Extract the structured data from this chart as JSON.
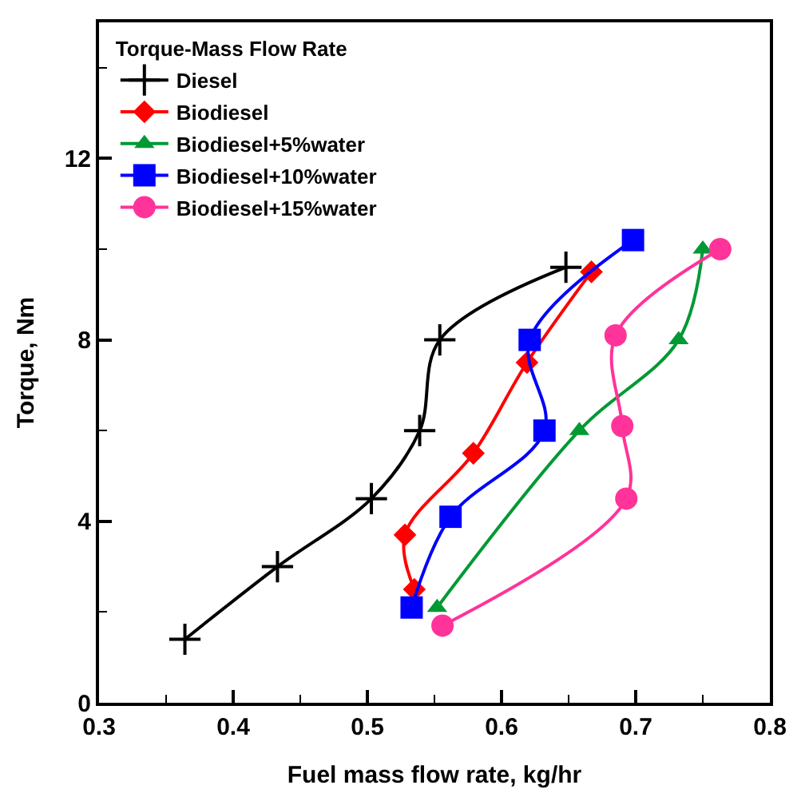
{
  "chart_data": {
    "type": "line",
    "xlabel": "Fuel mass flow rate, kg/hr",
    "ylabel": "Torque, Nm",
    "legend_title": "Torque-Mass Flow Rate",
    "legend": "top left",
    "grid": false,
    "line_style": "solid",
    "xlim": [
      0.3,
      0.8
    ],
    "xticks": [
      0.3,
      0.4,
      0.5,
      0.6,
      0.7,
      {
        "value": 0.8,
        "label": "0.8"
      }
    ],
    "ylim": [
      0,
      15
    ],
    "yticks": [
      0,
      4,
      8,
      12
    ],
    "series": [
      {
        "name": "Diesel",
        "color": "#000000",
        "marker": "cross",
        "x": [
          0.364,
          0.433,
          0.503,
          0.539,
          0.554,
          0.648
        ],
        "values": [
          1.4,
          3.0,
          4.5,
          6.0,
          8.0,
          9.6
        ]
      },
      {
        "name": "Biodiesel",
        "color": "#ff0000",
        "marker": "diamond",
        "x": [
          0.535,
          0.528,
          0.579,
          0.619,
          0.667
        ],
        "values": [
          2.5,
          3.7,
          5.5,
          7.5,
          9.5
        ]
      },
      {
        "name": "Biodiesel+5%water",
        "color": "#009933",
        "marker": "triangle",
        "x": [
          0.552,
          0.658,
          0.732,
          0.75
        ],
        "values": [
          2.1,
          6.0,
          8.0,
          10.0
        ]
      },
      {
        "name": "Biodiesel+10%water",
        "color": "#0000ff",
        "marker": "square",
        "x": [
          0.533,
          0.562,
          0.632,
          0.621,
          0.698
        ],
        "values": [
          2.1,
          4.1,
          6.0,
          8.0,
          10.2
        ]
      },
      {
        "name": "Biodiesel+15%water",
        "color": "#ff3399",
        "marker": "circle",
        "x": [
          0.556,
          0.693,
          0.69,
          0.685,
          0.763
        ],
        "values": [
          1.7,
          4.5,
          6.1,
          8.1,
          10.0
        ]
      }
    ]
  }
}
